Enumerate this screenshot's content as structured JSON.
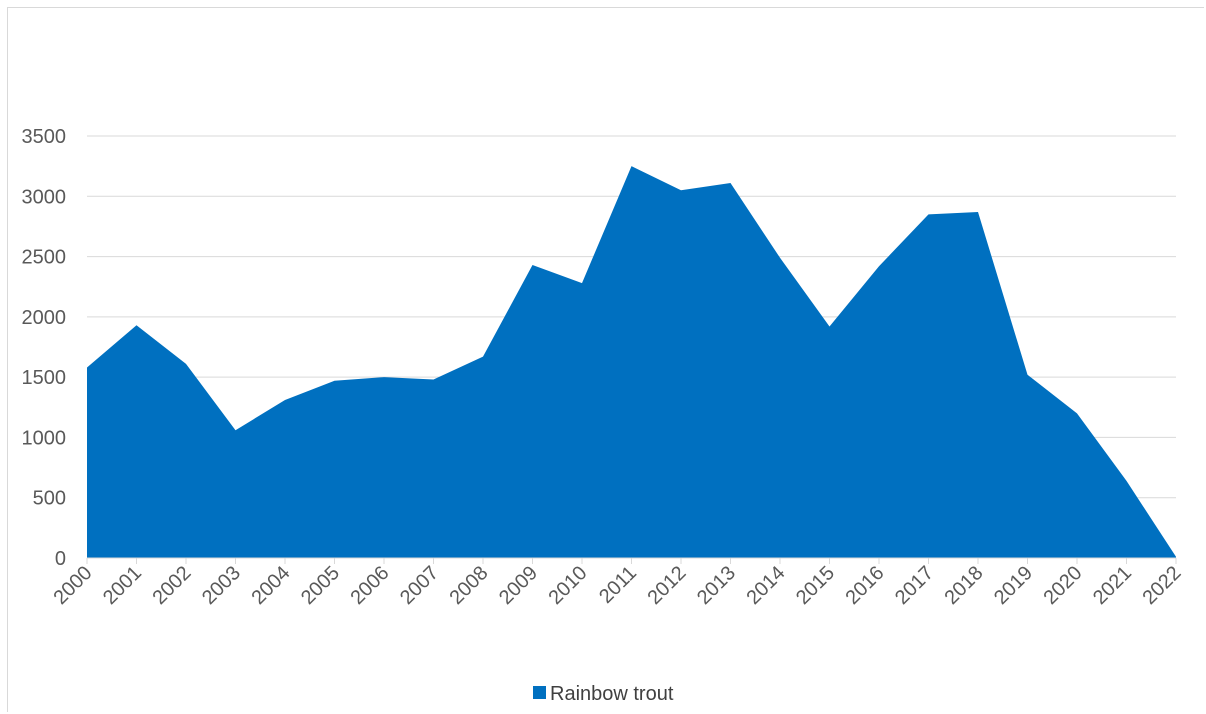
{
  "chart_data": {
    "type": "area",
    "categories": [
      "2000",
      "2001",
      "2002",
      "2003",
      "2004",
      "2005",
      "2006",
      "2007",
      "2008",
      "2009",
      "2010",
      "2011",
      "2012",
      "2013",
      "2014",
      "2015",
      "2016",
      "2017",
      "2018",
      "2019",
      "2020",
      "2021",
      "2022"
    ],
    "series": [
      {
        "name": "Rainbow trout",
        "values": [
          1580,
          1930,
          1610,
          1060,
          1310,
          1470,
          1500,
          1480,
          1670,
          2430,
          2280,
          3250,
          3050,
          3110,
          2490,
          1920,
          2420,
          2850,
          2870,
          1520,
          1200,
          640,
          10
        ],
        "color": "#0070c0"
      }
    ],
    "title": "",
    "xlabel": "",
    "ylabel": "",
    "ylim": [
      0,
      3500
    ],
    "yticks": [
      "0",
      "500",
      "1000",
      "1500",
      "2000",
      "2500",
      "3000",
      "3500"
    ],
    "grid": true,
    "legend": "bottom"
  }
}
